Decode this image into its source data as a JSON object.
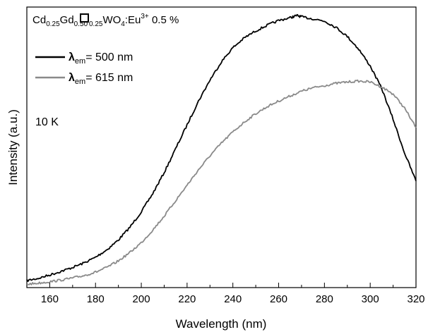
{
  "chart_data": {
    "type": "line",
    "title": "",
    "xlabel": "Wavelength (nm)",
    "ylabel": "Intensity (a.u.)",
    "xlim": [
      150,
      320
    ],
    "ylim": [
      0,
      1.0
    ],
    "x_ticks": [
      "160",
      "180",
      "200",
      "220",
      "240",
      "260",
      "280",
      "300",
      "320"
    ],
    "x_tick_values": [
      160,
      180,
      200,
      220,
      240,
      260,
      280,
      300,
      320
    ],
    "y_ticks": [],
    "grid": false,
    "legend_position": "top-left",
    "annotations": {
      "compound": {
        "cd": "Cd",
        "cd_sub": "0.25",
        "gd": "Gd",
        "gd_sub": "0.50",
        "vac_sub": "0.25",
        "wo": "WO",
        "wo_sub": "4",
        "eu": ":Eu",
        "eu_sup": "3+",
        "conc": " 0.5 %"
      },
      "temperature": "10 K"
    },
    "legend": {
      "lambda": "λ",
      "sub": "em",
      "items": [
        {
          "label": "= 500 nm",
          "color": "#000000"
        },
        {
          "label": "= 615 nm",
          "color": "#8a8a8a"
        }
      ]
    },
    "series": [
      {
        "legend_index": 0,
        "color": "#000000",
        "x": [
          150,
          155,
          160,
          165,
          170,
          175,
          180,
          185,
          190,
          195,
          200,
          205,
          210,
          215,
          220,
          225,
          230,
          235,
          240,
          245,
          250,
          255,
          260,
          265,
          268,
          270,
          275,
          280,
          285,
          290,
          295,
          300,
          305,
          310,
          315,
          320
        ],
        "y": [
          0.025,
          0.033,
          0.045,
          0.058,
          0.072,
          0.088,
          0.108,
          0.135,
          0.17,
          0.215,
          0.27,
          0.335,
          0.41,
          0.495,
          0.58,
          0.665,
          0.74,
          0.805,
          0.855,
          0.89,
          0.915,
          0.935,
          0.952,
          0.962,
          0.97,
          0.965,
          0.958,
          0.95,
          0.928,
          0.895,
          0.85,
          0.79,
          0.71,
          0.6,
          0.48,
          0.38
        ]
      },
      {
        "legend_index": 1,
        "color": "#8a8a8a",
        "x": [
          150,
          155,
          160,
          165,
          170,
          175,
          180,
          185,
          190,
          195,
          200,
          205,
          210,
          215,
          220,
          225,
          230,
          235,
          240,
          245,
          250,
          255,
          260,
          265,
          270,
          275,
          280,
          285,
          290,
          295,
          300,
          305,
          310,
          315,
          320
        ],
        "y": [
          0.012,
          0.016,
          0.021,
          0.027,
          0.034,
          0.043,
          0.055,
          0.072,
          0.095,
          0.125,
          0.16,
          0.205,
          0.255,
          0.31,
          0.365,
          0.42,
          0.47,
          0.515,
          0.555,
          0.59,
          0.62,
          0.645,
          0.665,
          0.683,
          0.7,
          0.712,
          0.72,
          0.728,
          0.733,
          0.736,
          0.733,
          0.715,
          0.69,
          0.64,
          0.57
        ]
      }
    ]
  }
}
